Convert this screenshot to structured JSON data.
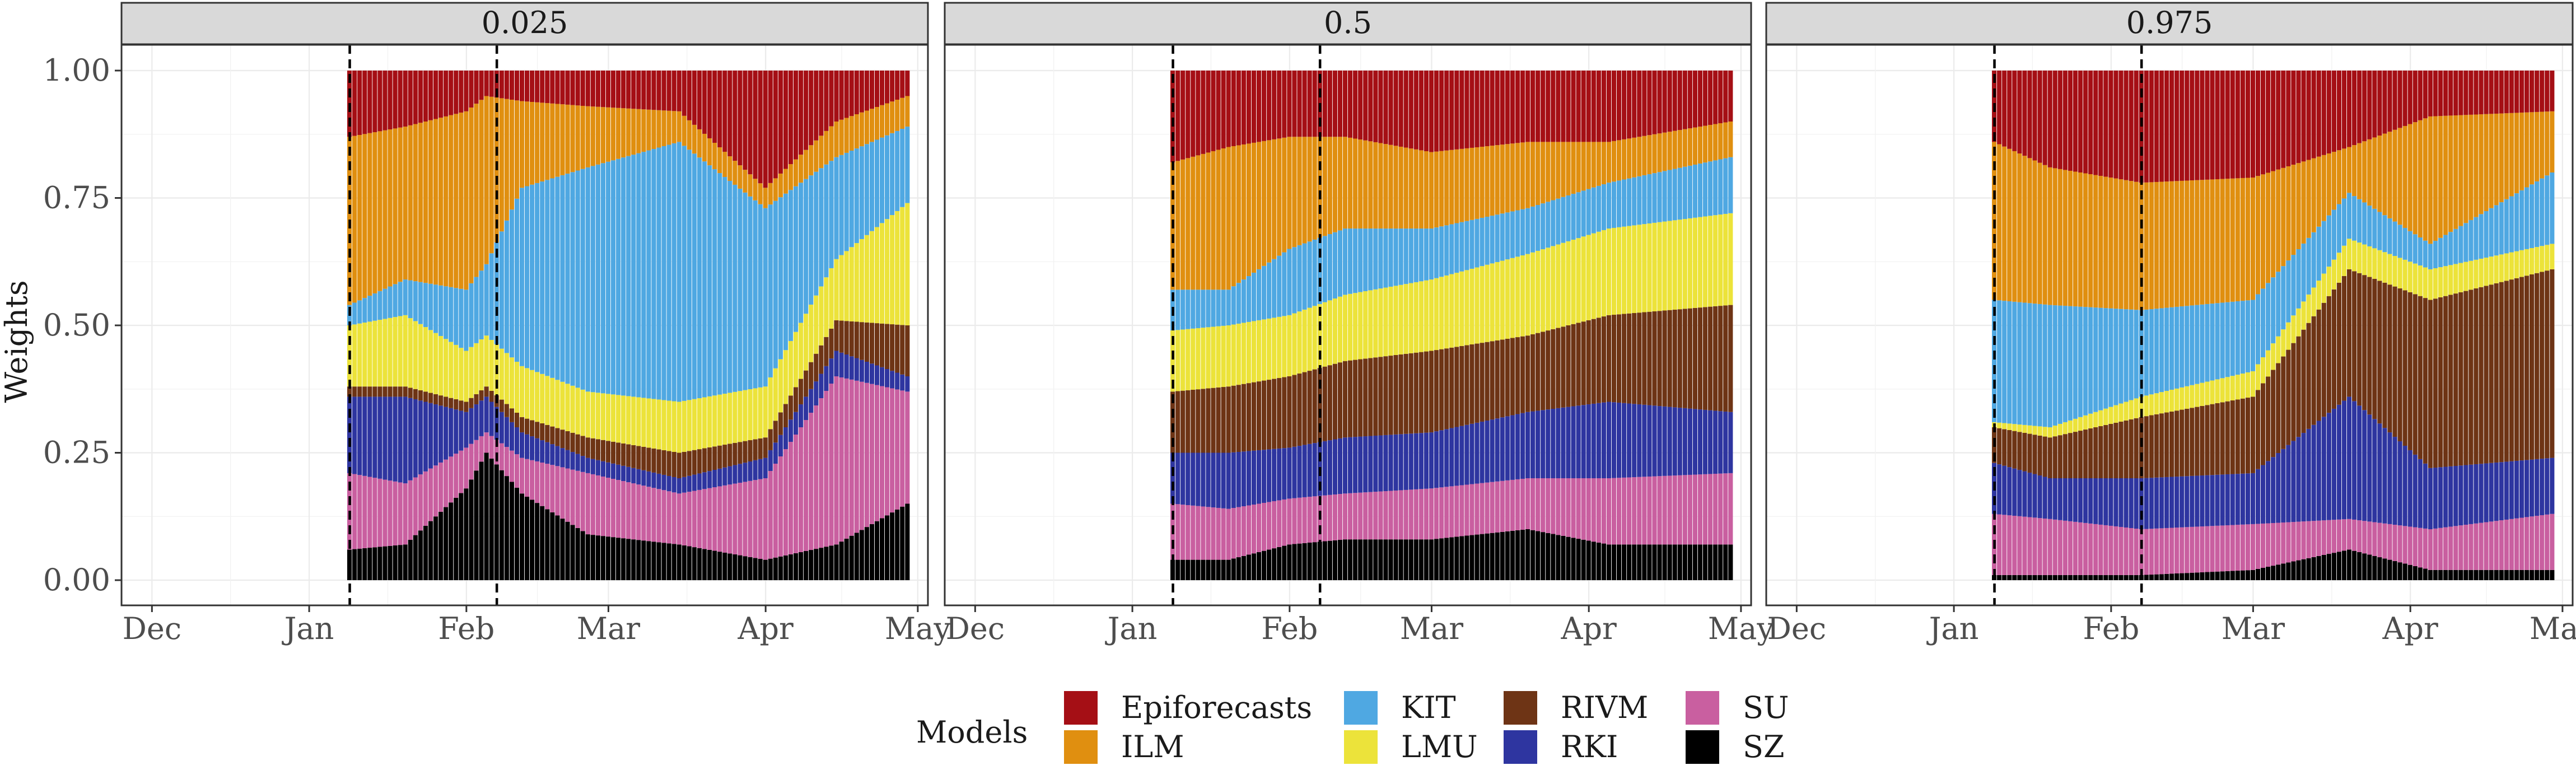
{
  "chart_data": {
    "type": "area",
    "ylabel": "Weights",
    "ylim": [
      0,
      1
    ],
    "y_ticks": [
      "0.00",
      "0.25",
      "0.50",
      "0.75",
      "1.00"
    ],
    "y_tick_values": [
      0,
      0.25,
      0.5,
      0.75,
      1.0
    ],
    "x_ticks": [
      "Dec",
      "Jan",
      "Feb",
      "Mar",
      "Apr",
      "May"
    ],
    "x_tick_dates": [
      "2021-12-01",
      "2022-01-01",
      "2022-02-01",
      "2022-03-01",
      "2022-04-01",
      "2022-05-01"
    ],
    "xlim": [
      "2021-11-25",
      "2022-05-03"
    ],
    "data_start": "2022-01-09",
    "data_end": "2022-04-29",
    "vlines": [
      "2022-01-09",
      "2022-02-07"
    ],
    "grid": true,
    "legend": {
      "title": "Models",
      "position": "bottom",
      "items": [
        "Epiforecasts",
        "ILM",
        "KIT",
        "LMU",
        "RIVM",
        "RKI",
        "SU",
        "SZ"
      ]
    },
    "colors": {
      "Epiforecasts": "#A50F15",
      "ILM": "#E08F10",
      "KIT": "#4FA8E2",
      "LMU": "#ECE33A",
      "RIVM": "#6E3415",
      "RKI": "#2E35A0",
      "SU": "#C95FA0",
      "SZ": "#000000"
    },
    "stack_order_bottom_to_top": [
      "SZ",
      "SU",
      "RKI",
      "RIVM",
      "LMU",
      "KIT",
      "ILM",
      "Epiforecasts"
    ],
    "facets": [
      {
        "label": "0.025",
        "series": [
          {
            "name": "SZ",
            "x": [
              "2022-01-09",
              "2022-01-20",
              "2022-02-01",
              "2022-02-05",
              "2022-02-12",
              "2022-02-25",
              "2022-03-15",
              "2022-04-01",
              "2022-04-15",
              "2022-04-29"
            ],
            "values": [
              0.06,
              0.07,
              0.18,
              0.25,
              0.17,
              0.09,
              0.07,
              0.04,
              0.07,
              0.15
            ]
          },
          {
            "name": "SU",
            "x": [
              "2022-01-09",
              "2022-01-20",
              "2022-02-01",
              "2022-02-05",
              "2022-02-12",
              "2022-02-25",
              "2022-03-15",
              "2022-04-01",
              "2022-04-15",
              "2022-04-29"
            ],
            "values": [
              0.15,
              0.12,
              0.08,
              0.04,
              0.07,
              0.12,
              0.1,
              0.16,
              0.33,
              0.22
            ]
          },
          {
            "name": "RKI",
            "x": [
              "2022-01-09",
              "2022-01-20",
              "2022-02-01",
              "2022-02-05",
              "2022-02-12",
              "2022-02-25",
              "2022-03-15",
              "2022-04-01",
              "2022-04-15",
              "2022-04-29"
            ],
            "values": [
              0.15,
              0.17,
              0.07,
              0.07,
              0.05,
              0.03,
              0.03,
              0.04,
              0.05,
              0.03
            ]
          },
          {
            "name": "RIVM",
            "x": [
              "2022-01-09",
              "2022-01-20",
              "2022-02-01",
              "2022-02-05",
              "2022-02-12",
              "2022-02-25",
              "2022-03-15",
              "2022-04-01",
              "2022-04-15",
              "2022-04-29"
            ],
            "values": [
              0.02,
              0.02,
              0.02,
              0.02,
              0.03,
              0.04,
              0.05,
              0.04,
              0.06,
              0.1
            ]
          },
          {
            "name": "LMU",
            "x": [
              "2022-01-09",
              "2022-01-20",
              "2022-02-01",
              "2022-02-05",
              "2022-02-12",
              "2022-02-25",
              "2022-03-15",
              "2022-04-01",
              "2022-04-15",
              "2022-04-29"
            ],
            "values": [
              0.12,
              0.14,
              0.1,
              0.1,
              0.1,
              0.09,
              0.1,
              0.1,
              0.12,
              0.24
            ]
          },
          {
            "name": "KIT",
            "x": [
              "2022-01-09",
              "2022-01-20",
              "2022-02-01",
              "2022-02-05",
              "2022-02-12",
              "2022-02-25",
              "2022-03-15",
              "2022-04-01",
              "2022-04-15",
              "2022-04-29"
            ],
            "values": [
              0.04,
              0.07,
              0.12,
              0.14,
              0.35,
              0.44,
              0.51,
              0.35,
              0.2,
              0.15
            ]
          },
          {
            "name": "ILM",
            "x": [
              "2022-01-09",
              "2022-01-20",
              "2022-02-01",
              "2022-02-05",
              "2022-02-12",
              "2022-02-25",
              "2022-03-15",
              "2022-04-01",
              "2022-04-15",
              "2022-04-29"
            ],
            "values": [
              0.33,
              0.3,
              0.35,
              0.33,
              0.17,
              0.12,
              0.06,
              0.04,
              0.07,
              0.06
            ]
          },
          {
            "name": "Epiforecasts",
            "x": [
              "2022-01-09",
              "2022-01-20",
              "2022-02-01",
              "2022-02-05",
              "2022-02-12",
              "2022-02-25",
              "2022-03-15",
              "2022-04-01",
              "2022-04-15",
              "2022-04-29"
            ],
            "values": [
              0.13,
              0.11,
              0.08,
              0.05,
              0.06,
              0.07,
              0.08,
              0.23,
              0.1,
              0.05
            ]
          }
        ]
      },
      {
        "label": "0.5",
        "series": [
          {
            "name": "SZ",
            "x": [
              "2022-01-09",
              "2022-01-20",
              "2022-02-01",
              "2022-02-12",
              "2022-03-01",
              "2022-03-20",
              "2022-04-05",
              "2022-04-29"
            ],
            "values": [
              0.04,
              0.04,
              0.07,
              0.08,
              0.08,
              0.1,
              0.07,
              0.07
            ]
          },
          {
            "name": "SU",
            "x": [
              "2022-01-09",
              "2022-01-20",
              "2022-02-01",
              "2022-02-12",
              "2022-03-01",
              "2022-03-20",
              "2022-04-05",
              "2022-04-29"
            ],
            "values": [
              0.11,
              0.1,
              0.09,
              0.09,
              0.1,
              0.1,
              0.13,
              0.14
            ]
          },
          {
            "name": "RKI",
            "x": [
              "2022-01-09",
              "2022-01-20",
              "2022-02-01",
              "2022-02-12",
              "2022-03-01",
              "2022-03-20",
              "2022-04-05",
              "2022-04-29"
            ],
            "values": [
              0.1,
              0.11,
              0.1,
              0.11,
              0.11,
              0.13,
              0.15,
              0.12
            ]
          },
          {
            "name": "RIVM",
            "x": [
              "2022-01-09",
              "2022-01-20",
              "2022-02-01",
              "2022-02-12",
              "2022-03-01",
              "2022-03-20",
              "2022-04-05",
              "2022-04-29"
            ],
            "values": [
              0.12,
              0.13,
              0.14,
              0.15,
              0.16,
              0.15,
              0.17,
              0.21
            ]
          },
          {
            "name": "LMU",
            "x": [
              "2022-01-09",
              "2022-01-20",
              "2022-02-01",
              "2022-02-12",
              "2022-03-01",
              "2022-03-20",
              "2022-04-05",
              "2022-04-29"
            ],
            "values": [
              0.12,
              0.12,
              0.12,
              0.13,
              0.14,
              0.16,
              0.17,
              0.18
            ]
          },
          {
            "name": "KIT",
            "x": [
              "2022-01-09",
              "2022-01-20",
              "2022-02-01",
              "2022-02-12",
              "2022-03-01",
              "2022-03-20",
              "2022-04-05",
              "2022-04-29"
            ],
            "values": [
              0.08,
              0.07,
              0.13,
              0.13,
              0.1,
              0.09,
              0.09,
              0.11
            ]
          },
          {
            "name": "ILM",
            "x": [
              "2022-01-09",
              "2022-01-20",
              "2022-02-01",
              "2022-02-12",
              "2022-03-01",
              "2022-03-20",
              "2022-04-05",
              "2022-04-29"
            ],
            "values": [
              0.25,
              0.28,
              0.22,
              0.18,
              0.15,
              0.13,
              0.08,
              0.07
            ]
          },
          {
            "name": "Epiforecasts",
            "x": [
              "2022-01-09",
              "2022-01-20",
              "2022-02-01",
              "2022-02-12",
              "2022-03-01",
              "2022-03-20",
              "2022-04-05",
              "2022-04-29"
            ],
            "values": [
              0.18,
              0.15,
              0.13,
              0.13,
              0.16,
              0.14,
              0.14,
              0.1
            ]
          }
        ]
      },
      {
        "label": "0.975",
        "series": [
          {
            "name": "SZ",
            "x": [
              "2022-01-09",
              "2022-01-20",
              "2022-02-07",
              "2022-03-01",
              "2022-03-20",
              "2022-04-05",
              "2022-04-29"
            ],
            "values": [
              0.01,
              0.01,
              0.01,
              0.02,
              0.06,
              0.02,
              0.02
            ]
          },
          {
            "name": "SU",
            "x": [
              "2022-01-09",
              "2022-01-20",
              "2022-02-07",
              "2022-03-01",
              "2022-03-20",
              "2022-04-05",
              "2022-04-29"
            ],
            "values": [
              0.12,
              0.11,
              0.09,
              0.09,
              0.06,
              0.08,
              0.11
            ]
          },
          {
            "name": "RKI",
            "x": [
              "2022-01-09",
              "2022-01-20",
              "2022-02-07",
              "2022-03-01",
              "2022-03-20",
              "2022-04-05",
              "2022-04-29"
            ],
            "values": [
              0.1,
              0.08,
              0.1,
              0.1,
              0.24,
              0.12,
              0.11
            ]
          },
          {
            "name": "RIVM",
            "x": [
              "2022-01-09",
              "2022-01-20",
              "2022-02-07",
              "2022-03-01",
              "2022-03-20",
              "2022-04-05",
              "2022-04-29"
            ],
            "values": [
              0.07,
              0.08,
              0.12,
              0.15,
              0.25,
              0.33,
              0.37
            ]
          },
          {
            "name": "LMU",
            "x": [
              "2022-01-09",
              "2022-01-20",
              "2022-02-07",
              "2022-03-01",
              "2022-03-20",
              "2022-04-05",
              "2022-04-29"
            ],
            "values": [
              0.01,
              0.02,
              0.04,
              0.05,
              0.06,
              0.06,
              0.05
            ]
          },
          {
            "name": "KIT",
            "x": [
              "2022-01-09",
              "2022-01-20",
              "2022-02-07",
              "2022-03-01",
              "2022-03-20",
              "2022-04-05",
              "2022-04-29"
            ],
            "values": [
              0.24,
              0.24,
              0.17,
              0.14,
              0.09,
              0.05,
              0.14
            ]
          },
          {
            "name": "ILM",
            "x": [
              "2022-01-09",
              "2022-01-20",
              "2022-02-07",
              "2022-03-01",
              "2022-03-20",
              "2022-04-05",
              "2022-04-29"
            ],
            "values": [
              0.31,
              0.27,
              0.25,
              0.24,
              0.09,
              0.25,
              0.12
            ]
          },
          {
            "name": "Epiforecasts",
            "x": [
              "2022-01-09",
              "2022-01-20",
              "2022-02-07",
              "2022-03-01",
              "2022-03-20",
              "2022-04-05",
              "2022-04-29"
            ],
            "values": [
              0.14,
              0.19,
              0.22,
              0.21,
              0.15,
              0.09,
              0.08
            ]
          }
        ]
      }
    ]
  }
}
